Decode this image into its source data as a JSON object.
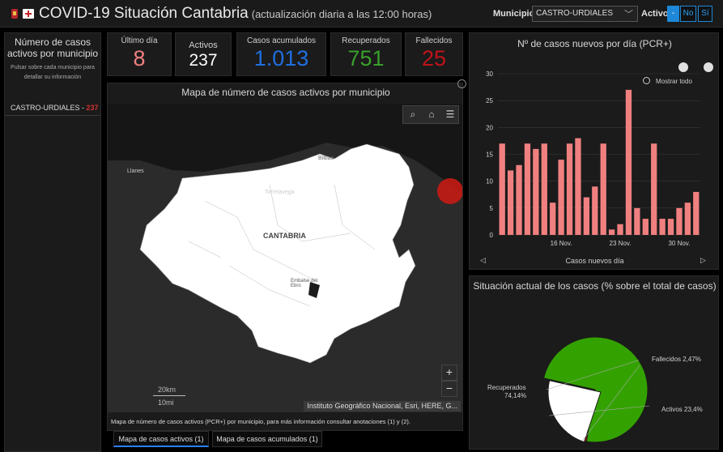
{
  "header": {
    "title": "COVID-19 Situación Cantabria",
    "subtitle": "(actualización diaria a las 12:00 horas)",
    "municipio_label": "Municipio",
    "municipio_value": "CASTRO-URDIALES",
    "activo_label": "Activo",
    "toggle": [
      "-",
      "No",
      "Sí"
    ]
  },
  "sidebar": {
    "title": "Número de casos activos por municipio",
    "hint": "Pulsar sobre cada municipio para detallar su información",
    "item_name": "CASTRO-URDIALES - ",
    "item_value": "237"
  },
  "stats": [
    {
      "label": "Último día",
      "value": "8"
    },
    {
      "label": "Activos",
      "value": "237"
    },
    {
      "label": "Casos acumulados",
      "value": "1.013"
    },
    {
      "label": "Recuperados",
      "value": "751"
    },
    {
      "label": "Fallecidos",
      "value": "25"
    }
  ],
  "map": {
    "title": "Mapa de número de casos activos por municipio",
    "labels": [
      "Llanes",
      "Torrelavega",
      "CANTABRIA",
      "Embalse del Ebro",
      "Bilbao"
    ],
    "scale_km": "20km",
    "scale_mi": "10mi",
    "attribution": "Instituto Geográfico Nacional, Esri, HERE, G...",
    "footer": "Mapa de número de casos activos (PCR+) por municipio, para más información consultar anotaciones (1) y (2).",
    "icons": [
      "search-icon",
      "home-icon",
      "list-icon"
    ]
  },
  "tabs": [
    "Mapa de casos activos (1)",
    "Mapa de casos acumulados (1)"
  ],
  "chart_data": [
    {
      "type": "bar",
      "title": "Nº de casos nuevos por día (PCR+)",
      "xlabel": "Casos nuevos día",
      "ylabel": "",
      "ylim": [
        0,
        30
      ],
      "yticks": [
        0,
        5,
        10,
        15,
        20,
        25,
        30
      ],
      "xticks": [
        "16 Nov.",
        "23 Nov.",
        "30 Nov."
      ],
      "values": [
        17,
        12,
        13,
        17,
        16,
        17,
        6,
        14,
        17,
        18,
        7,
        9,
        17,
        1,
        2,
        27,
        5,
        3,
        17,
        3,
        3,
        5,
        6,
        8
      ],
      "color": "#f08080",
      "zoom_all_label": "Mostrar todo"
    },
    {
      "type": "pie",
      "title": "Situación actual de los casos (% sobre el total de casos)",
      "slices": [
        {
          "label": "Recuperados 74,14%",
          "value": 74.14,
          "color": "#33a200"
        },
        {
          "label": "Activos 23,4%",
          "value": 23.4,
          "color": "#ffffff"
        },
        {
          "label": "Fallecidos 2,47%",
          "value": 2.47,
          "color": "#b8131a"
        }
      ]
    }
  ]
}
